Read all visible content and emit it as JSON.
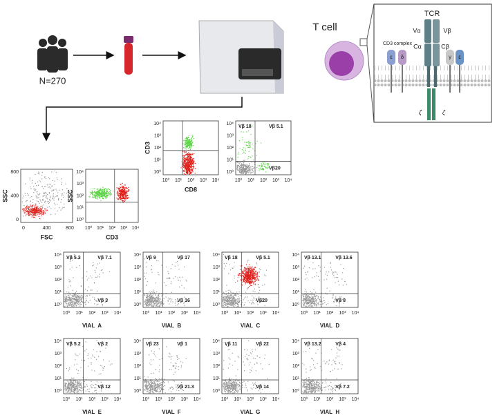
{
  "workflow": {
    "cohort_label": "N=270"
  },
  "tcr_diagram": {
    "cell_label": "T cell",
    "receptor_label": "TCR",
    "chains": [
      "Vα",
      "Vβ",
      "Cα",
      "Cβ"
    ],
    "complex_label": "CD3 complex",
    "cd3_subunits": [
      "ε",
      "δ",
      "γ",
      "ε"
    ],
    "zeta": [
      "ζ",
      "ζ"
    ]
  },
  "log_ticks": [
    "10⁰",
    "10¹",
    "10²",
    "10³",
    "10⁴"
  ],
  "gating_plots": [
    {
      "x_label": "FSC",
      "y_label": "SSC",
      "xticks": [
        "0",
        "400",
        "800"
      ],
      "yticks": [
        "0",
        "400",
        "800"
      ]
    },
    {
      "x_label": "CD3",
      "y_label": "SSC"
    },
    {
      "x_label": "CD8",
      "y_label": "CD3"
    },
    {
      "quadrants": [
        "Vβ 18",
        "Vβ 5.1",
        "Vβ20"
      ]
    }
  ],
  "vials": [
    {
      "label": "VIAL  A",
      "quadrants": [
        "Vβ 5.3",
        "Vβ 7.1",
        "Vβ 3"
      ]
    },
    {
      "label": "VIAL  B",
      "quadrants": [
        "Vβ 9",
        "Vβ 17",
        "Vβ 16"
      ]
    },
    {
      "label": "VIAL  C",
      "quadrants": [
        "Vβ 18",
        "Vβ 5.1",
        "Vβ20"
      ],
      "ur_color": "#e0201b"
    },
    {
      "label": "VIAL  D",
      "quadrants": [
        "Vβ 13.1",
        "Vβ 13.6",
        "Vβ 8"
      ]
    },
    {
      "label": "VIAL  E",
      "quadrants": [
        "Vβ 5.2",
        "Vβ 2",
        "Vβ 12"
      ]
    },
    {
      "label": "VIAL  F",
      "quadrants": [
        "Vβ 23",
        "Vβ 1",
        "Vβ 21.3"
      ]
    },
    {
      "label": "VIAL  G",
      "quadrants": [
        "Vβ 11",
        "Vβ 22",
        "Vβ 14"
      ]
    },
    {
      "label": "VIAL  H",
      "quadrants": [
        "Vβ 13.2",
        "Vβ 4",
        "Vβ 7.2"
      ]
    }
  ]
}
